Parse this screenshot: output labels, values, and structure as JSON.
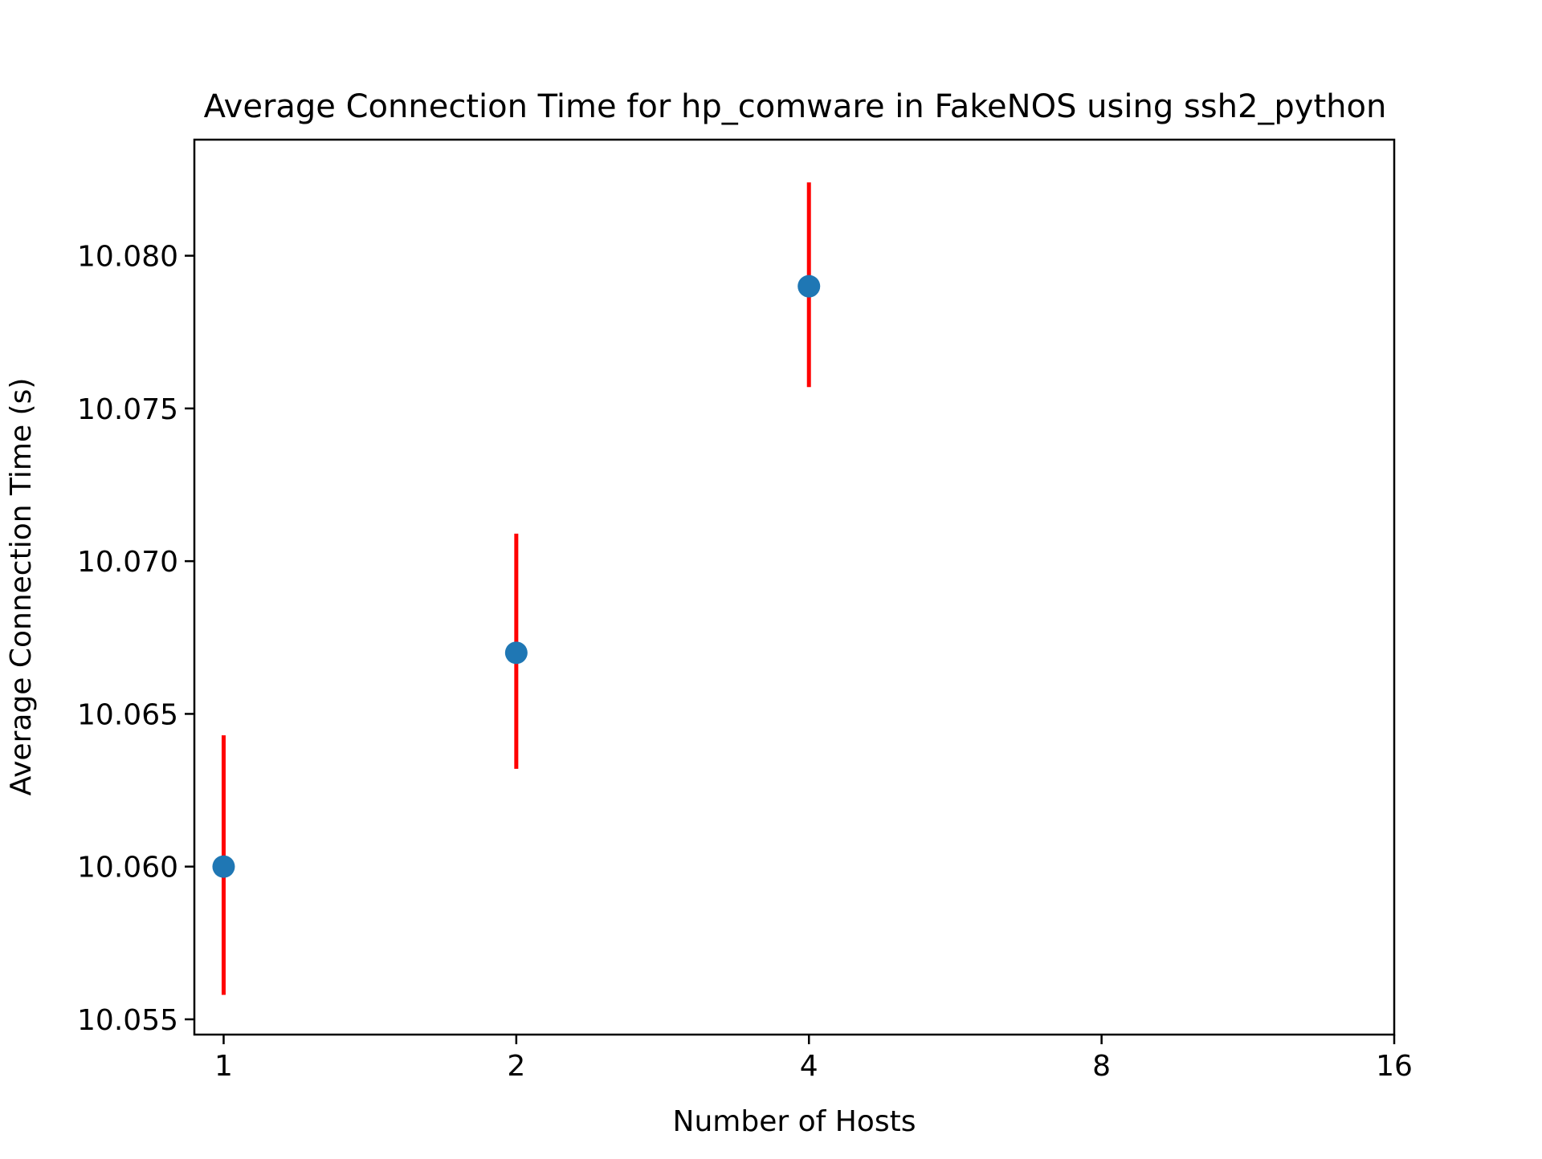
{
  "chart_data": {
    "type": "scatter",
    "title": "Average Connection Time for hp_comware in FakeNOS using ssh2_python",
    "xlabel": "Number of Hosts",
    "ylabel": "Average Connection Time (s)",
    "x_scale": "log2",
    "x_ticks": [
      1,
      2,
      4,
      8,
      16
    ],
    "x_tick_labels": [
      "1",
      "2",
      "4",
      "8",
      "16"
    ],
    "y_ticks": [
      10.055,
      10.06,
      10.065,
      10.07,
      10.075,
      10.08
    ],
    "y_tick_labels": [
      "10.055",
      "10.060",
      "10.065",
      "10.070",
      "10.075",
      "10.080"
    ],
    "xlim": [
      0.933,
      16
    ],
    "ylim": [
      10.0545,
      10.0838
    ],
    "grid": false,
    "series": [
      {
        "points": [
          {
            "x": 1,
            "y": 10.06,
            "err_low": 10.0558,
            "err_high": 10.0643
          },
          {
            "x": 2,
            "y": 10.067,
            "err_low": 10.0632,
            "err_high": 10.0709
          },
          {
            "x": 4,
            "y": 10.079,
            "err_low": 10.0757,
            "err_high": 10.0824
          }
        ],
        "marker_color": "#1f77b4",
        "error_color": "#ff0000"
      }
    ]
  }
}
